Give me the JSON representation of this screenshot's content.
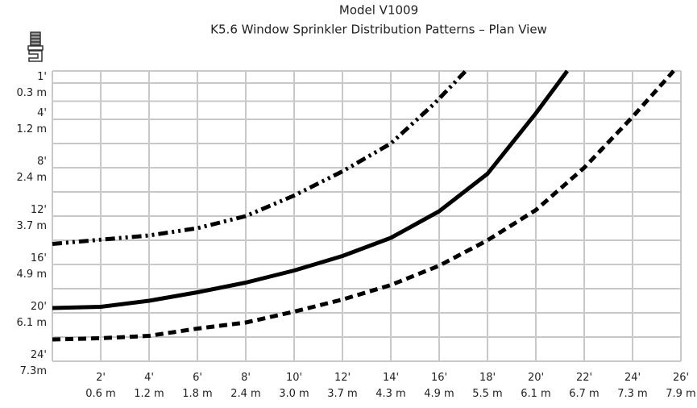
{
  "chart_data": {
    "type": "line",
    "title": "Model V1009",
    "subtitle": "K5.6 Window Sprinkler Distribution Patterns – Plan View",
    "xlim": [
      0,
      26
    ],
    "ylim": [
      0,
      24
    ],
    "y_inverted": true,
    "grid": true,
    "xticks": [
      {
        "value": 2,
        "label": "2'\n0.6 m"
      },
      {
        "value": 4,
        "label": "4'\n1.2 m"
      },
      {
        "value": 6,
        "label": "6'\n1.8 m"
      },
      {
        "value": 8,
        "label": "8'\n2.4 m"
      },
      {
        "value": 10,
        "label": "10'\n3.0 m"
      },
      {
        "value": 12,
        "label": "12'\n3.7 m"
      },
      {
        "value": 14,
        "label": "14'\n4.3 m"
      },
      {
        "value": 16,
        "label": "16'\n4.9 m"
      },
      {
        "value": 18,
        "label": "18'\n5.5 m"
      },
      {
        "value": 20,
        "label": "20'\n6.1 m"
      },
      {
        "value": 22,
        "label": "22'\n6.7 m"
      },
      {
        "value": 24,
        "label": "24'\n7.3 m"
      },
      {
        "value": 26,
        "label": "26'\n7.9 m"
      }
    ],
    "yticks": [
      {
        "value": 1,
        "label": "1'\n0.3 m"
      },
      {
        "value": 4,
        "label": "4'\n1.2 m"
      },
      {
        "value": 8,
        "label": "8'\n2.4 m"
      },
      {
        "value": 12,
        "label": "12'\n3.7 m"
      },
      {
        "value": 16,
        "label": "16'\n4.9 m"
      },
      {
        "value": 20,
        "label": "20'\n6.1 m"
      },
      {
        "value": 24,
        "label": "24'\n7.3m"
      }
    ],
    "series": [
      {
        "color": "#000000",
        "dash": "dashdot",
        "x": [
          0,
          4,
          6,
          8,
          10,
          12,
          14,
          15.8,
          17.1
        ],
        "values": [
          14.3,
          13.6,
          13,
          12,
          10.3,
          8.3,
          6,
          2.7,
          0
        ]
      },
      {
        "color": "#000000",
        "dash": "solid",
        "x": [
          0,
          2,
          4,
          6,
          8,
          10,
          12,
          14,
          16,
          18,
          20,
          21.3
        ],
        "values": [
          19.6,
          19.5,
          19,
          18.3,
          17.5,
          16.5,
          15.3,
          13.8,
          11.6,
          8.5,
          3.5,
          0
        ]
      },
      {
        "color": "#000000",
        "dash": "dashed",
        "x": [
          0,
          2,
          4,
          6,
          8,
          10,
          12,
          14,
          16,
          18,
          20,
          22,
          24,
          25.7
        ],
        "values": [
          22.2,
          22.1,
          21.9,
          21.3,
          20.8,
          19.9,
          18.9,
          17.7,
          16.1,
          14,
          11.5,
          8,
          3.8,
          0
        ]
      }
    ]
  }
}
